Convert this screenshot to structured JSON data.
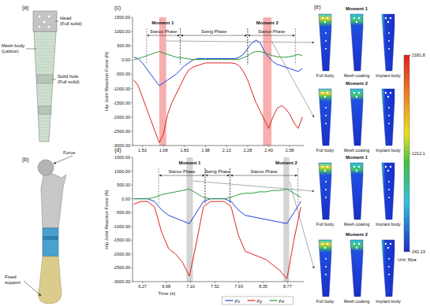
{
  "panels": {
    "a": {
      "label": "(a)",
      "head": [
        "Head",
        "(Full solid)"
      ],
      "mesh": [
        "Mesh body",
        "(Lattice)"
      ],
      "hole": [
        "Solid hole",
        "(Full solid)"
      ]
    },
    "b": {
      "label": "(b)",
      "force": "Force",
      "support": [
        "Fixed",
        "support"
      ]
    },
    "e": {
      "label": "(e)",
      "rows": [
        {
          "label": "Moment 1",
          "parts": [
            "Full body",
            "Mesh coating",
            "Implant body"
          ]
        },
        {
          "label": "Moment 2",
          "parts": [
            "Full body",
            "Mesh coating",
            "Implant body"
          ]
        },
        {
          "label": "Moment 1",
          "parts": [
            "Full body",
            "Mesh coating",
            "Implant body"
          ]
        },
        {
          "label": "Moment 2",
          "parts": [
            "Full body",
            "Mesh coating",
            "Implant body"
          ]
        }
      ],
      "colorbar": {
        "range": [
          242.23,
          2181.8
        ],
        "ticks": [
          242.23,
          1212.1,
          2181.8
        ],
        "unit": "Unit: Mpa"
      }
    }
  },
  "chart_data": [
    {
      "type": "line",
      "panel_label": "(c)",
      "y_label": "Hip Joint Reaction Force (N)",
      "x": [
        1.47,
        1.5,
        1.53,
        1.56,
        1.59,
        1.62,
        1.65,
        1.68,
        1.71,
        1.74,
        1.77,
        1.8,
        1.83,
        1.86,
        1.89,
        1.92,
        1.95,
        1.98,
        2.01,
        2.04,
        2.07,
        2.1,
        2.13,
        2.16,
        2.19,
        2.22,
        2.25,
        2.28,
        2.31,
        2.34,
        2.37,
        2.4,
        2.43,
        2.46,
        2.49,
        2.52,
        2.55,
        2.58,
        2.61,
        2.64,
        2.67
      ],
      "series": [
        {
          "color": "#1f3fdc",
          "values": [
            100,
            50,
            -100,
            -300,
            -500,
            -700,
            -900,
            -800,
            -700,
            -600,
            -500,
            -350,
            -200,
            -100,
            0,
            50,
            50,
            50,
            50,
            50,
            50,
            50,
            50,
            50,
            50,
            100,
            200,
            400,
            600,
            700,
            600,
            300,
            100,
            -50,
            -150,
            -200,
            -250,
            -300,
            -350,
            -400,
            -300
          ]
        },
        {
          "color": "#e02020",
          "values": [
            -700,
            -900,
            -1300,
            -1700,
            -2100,
            -2500,
            -2900,
            -2600,
            -1900,
            -1500,
            -1200,
            -900,
            -600,
            -350,
            -250,
            -200,
            -150,
            -100,
            -100,
            -100,
            -100,
            -100,
            -100,
            -100,
            -120,
            -200,
            -400,
            -700,
            -1100,
            -1500,
            -1800,
            -2100,
            -2400,
            -2000,
            -1700,
            -1600,
            -1700,
            -1900,
            -2200,
            -2400,
            -2000
          ]
        },
        {
          "color": "#2a9d3a",
          "values": [
            0,
            50,
            100,
            150,
            200,
            250,
            300,
            250,
            200,
            150,
            100,
            80,
            60,
            40,
            20,
            20,
            20,
            20,
            20,
            20,
            20,
            20,
            20,
            20,
            20,
            30,
            80,
            150,
            250,
            300,
            300,
            250,
            200,
            150,
            120,
            100,
            100,
            120,
            150,
            200,
            150
          ]
        }
      ],
      "xlim": [
        1.46,
        2.68
      ],
      "ylim": [
        -3000,
        1500
      ],
      "xticks": [
        1.53,
        1.68,
        1.83,
        1.98,
        2.13,
        2.28,
        2.43,
        2.58
      ],
      "yticks": [
        {
          "value": 1500,
          "label": "1500.00"
        },
        {
          "value": 1000,
          "label": "1000.00"
        },
        {
          "value": 500,
          "label": "500.00"
        },
        {
          "value": 0,
          "label": "0.00"
        },
        {
          "value": -500,
          "label": "-500.00"
        },
        {
          "value": -1000,
          "label": "-1000.00"
        },
        {
          "value": -1500,
          "label": "-1500.00"
        },
        {
          "value": -2000,
          "label": "-2000.00"
        },
        {
          "value": -2500,
          "label": "-2500.00"
        },
        {
          "value": -3000,
          "label": "-3000.00"
        }
      ],
      "grid": false,
      "moments": [
        {
          "label": "Moment 1",
          "start": 1.65,
          "end": 1.7,
          "color": "#f07878"
        },
        {
          "label": "Moment 2",
          "start": 2.39,
          "end": 2.45,
          "color": "#f07878"
        }
      ],
      "phases": [
        {
          "label": "Stance Phase",
          "start": 1.56,
          "end": 1.8
        },
        {
          "label": "Swing Phase",
          "start": 1.8,
          "end": 2.28
        },
        {
          "label": "Stance Phase",
          "start": 2.28,
          "end": 2.62
        }
      ]
    },
    {
      "type": "line",
      "panel_label": "(d)",
      "y_label": "Hip Joint Reaction Force (N)",
      "x_label": "Time (s)",
      "x": [
        6.12,
        6.24,
        6.36,
        6.48,
        6.6,
        6.72,
        6.84,
        6.96,
        7.08,
        7.2,
        7.32,
        7.44,
        7.56,
        7.68,
        7.8,
        7.92,
        8.04,
        8.16,
        8.28,
        8.4,
        8.52,
        8.64,
        8.76,
        8.88,
        9.0
      ],
      "series": [
        {
          "name": "Fx",
          "color": "#1f3fdc",
          "values": [
            0,
            0,
            0,
            -100,
            -400,
            -600,
            -700,
            -800,
            -900,
            -500,
            -100,
            0,
            0,
            0,
            -100,
            -400,
            -600,
            -650,
            -700,
            -750,
            -800,
            -850,
            -900,
            -500,
            -100
          ]
        },
        {
          "name": "Fy",
          "color": "#e02020",
          "values": [
            -200,
            -100,
            -100,
            -300,
            -1200,
            -1800,
            -2000,
            -2300,
            -2800,
            -1600,
            -300,
            -100,
            -100,
            -100,
            -300,
            -1300,
            -1900,
            -2000,
            -2100,
            -2200,
            -2400,
            -2600,
            -2900,
            -1500,
            -300
          ]
        },
        {
          "name": "Fz",
          "color": "#2a9d3a",
          "values": [
            0,
            0,
            0,
            50,
            150,
            200,
            250,
            300,
            350,
            200,
            50,
            0,
            0,
            0,
            50,
            150,
            200,
            200,
            250,
            250,
            300,
            300,
            350,
            200,
            50
          ]
        }
      ],
      "xlim": [
        6.1,
        9.05
      ],
      "ylim": [
        -3000,
        1500
      ],
      "xticks": [
        6.27,
        6.68,
        {
          "value": 7.1,
          "label": "7.10"
        },
        7.52,
        7.93,
        8.35,
        8.77
      ],
      "yticks": [
        {
          "value": 1500,
          "label": "1500.00"
        },
        {
          "value": 1000,
          "label": "1000.00"
        },
        {
          "value": 500,
          "label": "500.00"
        },
        {
          "value": 0,
          "label": "0.00"
        },
        {
          "value": -500,
          "label": "-500.00"
        },
        {
          "value": -1000,
          "label": "-1000.00"
        },
        {
          "value": -1500,
          "label": "-1500.00"
        },
        {
          "value": -2000,
          "label": "-2000.00"
        },
        {
          "value": -2500,
          "label": "-2500.00"
        },
        {
          "value": -3000,
          "label": "-3000.00"
        }
      ],
      "grid": false,
      "legend": "bottom",
      "moments": [
        {
          "label": "Moment 1",
          "start": 7.03,
          "end": 7.14,
          "color": "#b8b8b8"
        },
        {
          "label": "Moment 2",
          "start": 8.7,
          "end": 8.8,
          "color": "#b8b8b8"
        }
      ],
      "phases": [
        {
          "label": "Stance Phase",
          "start": 6.55,
          "end": 7.35
        },
        {
          "label": "Swing Phase",
          "start": 7.35,
          "end": 7.78
        },
        {
          "label": "Stance Phase",
          "start": 7.78,
          "end": 8.95
        }
      ]
    }
  ]
}
